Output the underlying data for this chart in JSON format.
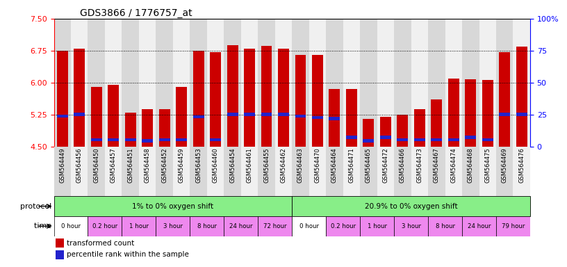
{
  "title": "GDS3866 / 1776757_at",
  "ylim": [
    4.5,
    7.5
  ],
  "yticks": [
    4.5,
    5.25,
    6.0,
    6.75,
    7.5
  ],
  "y2lim": [
    0,
    100
  ],
  "y2ticks": [
    0,
    25,
    50,
    75,
    100
  ],
  "samples": [
    "GSM564449",
    "GSM564456",
    "GSM564450",
    "GSM564457",
    "GSM564451",
    "GSM564458",
    "GSM564452",
    "GSM564459",
    "GSM564453",
    "GSM564460",
    "GSM564454",
    "GSM564461",
    "GSM564455",
    "GSM564462",
    "GSM564463",
    "GSM564470",
    "GSM564464",
    "GSM564471",
    "GSM564465",
    "GSM564472",
    "GSM564466",
    "GSM564473",
    "GSM564467",
    "GSM564474",
    "GSM564468",
    "GSM564475",
    "GSM564469",
    "GSM564476"
  ],
  "bar_heights": [
    6.75,
    6.8,
    5.9,
    5.95,
    5.3,
    5.37,
    5.37,
    5.9,
    6.75,
    6.72,
    6.88,
    6.8,
    6.86,
    6.8,
    6.65,
    6.65,
    5.85,
    5.85,
    5.15,
    5.2,
    5.25,
    5.38,
    5.6,
    6.1,
    6.08,
    6.06,
    6.72,
    6.85
  ],
  "percentile_heights": [
    5.18,
    5.22,
    4.63,
    4.63,
    4.63,
    4.6,
    4.63,
    4.63,
    5.16,
    4.63,
    5.22,
    5.22,
    5.22,
    5.22,
    5.18,
    5.15,
    5.12,
    4.68,
    4.6,
    4.68,
    4.62,
    4.62,
    4.62,
    4.62,
    4.68,
    4.62,
    5.22,
    5.22
  ],
  "bar_color": "#cc0000",
  "percentile_color": "#2222cc",
  "bar_base": 4.5,
  "protocol_label1": "1% to 0% oxygen shift",
  "protocol_label2": "20.9% to 0% oxygen shift",
  "protocol_color": "#88ee88",
  "time_labels": [
    "0 hour",
    "0.2 hour",
    "1 hour",
    "3 hour",
    "8 hour",
    "24 hour",
    "72 hour",
    "0 hour",
    "0.2 hour",
    "1 hour",
    "3 hour",
    "8 hour",
    "24 hour",
    "79 hour"
  ],
  "time_color_white": "#ffffff",
  "time_color_pink": "#ee88ee",
  "background_color": "#ffffff",
  "bar_width": 0.65,
  "col_bg_even": "#d8d8d8",
  "col_bg_odd": "#f0f0f0"
}
